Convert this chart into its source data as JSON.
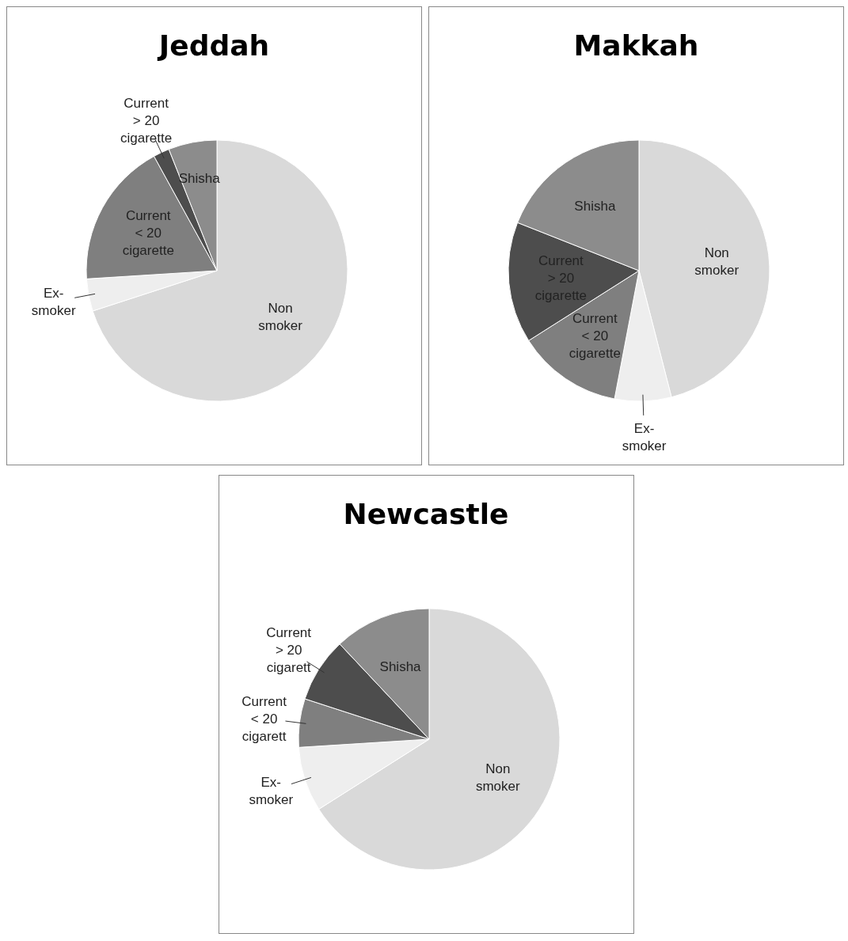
{
  "chart_data": [
    {
      "type": "pie",
      "title": "Jeddah",
      "categories": [
        "Non smoker",
        "Ex-smoker",
        "Current < 20 cigarette",
        "Current > 20 cigarette",
        "Shisha"
      ],
      "values": [
        70,
        4,
        18,
        2,
        6
      ],
      "colors": [
        "#d9d9d9",
        "#eeeeee",
        "#7f7f7f",
        "#4d4d4d",
        "#8c8c8c"
      ]
    },
    {
      "type": "pie",
      "title": "Makkah",
      "categories": [
        "Non smoker",
        "Ex-smoker",
        "Current < 20 cigarette",
        "Current > 20 cigarette",
        "Shisha"
      ],
      "values": [
        46,
        7,
        13,
        15,
        19
      ],
      "colors": [
        "#d9d9d9",
        "#eeeeee",
        "#7f7f7f",
        "#4d4d4d",
        "#8c8c8c"
      ]
    },
    {
      "type": "pie",
      "title": "Newcastle",
      "categories": [
        "Non smoker",
        "Ex-smoker",
        "Current < 20 cigarett",
        "Current > 20 cigarett",
        "Shisha"
      ],
      "values": [
        66,
        8,
        6,
        8,
        12
      ],
      "colors": [
        "#d9d9d9",
        "#eeeeee",
        "#7f7f7f",
        "#4d4d4d",
        "#8c8c8c"
      ]
    }
  ]
}
